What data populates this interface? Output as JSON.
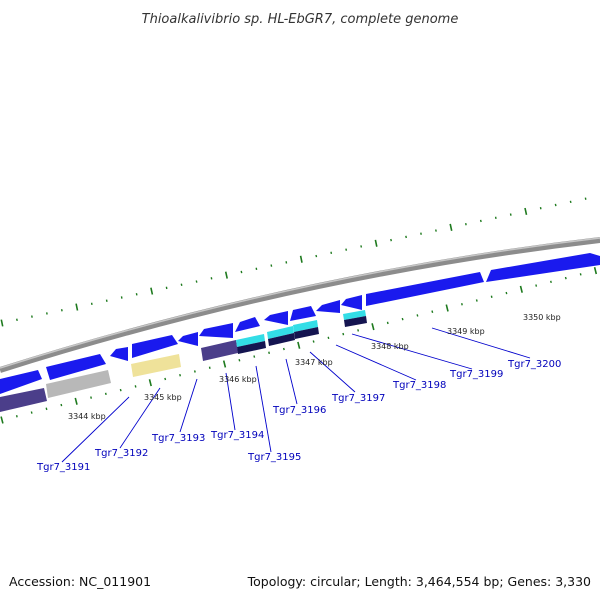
{
  "title": "Thioalkalivibrio sp. HL-EbGR7, complete genome",
  "footer": {
    "accession": "Accession: NC_011901",
    "summary": "Topology: circular; Length: 3,464,554 bp; Genes: 3,330"
  },
  "kbp_labels": [
    "3344 kbp",
    "3345 kbp",
    "3346 kbp",
    "3347 kbp",
    "3348 kbp",
    "3349 kbp",
    "3350 kbp"
  ],
  "gene_labels": [
    "Tgr7_3191",
    "Tgr7_3192",
    "Tgr7_3193",
    "Tgr7_3194",
    "Tgr7_3195",
    "Tgr7_3196",
    "Tgr7_3197",
    "Tgr7_3198",
    "Tgr7_3199",
    "Tgr7_3200"
  ],
  "colors": {
    "backbone": "#8c8c8c",
    "cds": "#1a1aee",
    "cds_highlight": "#6f6ff8",
    "gene_purple": "#4b3e8a",
    "gene_gray": "#b8b8b8",
    "gene_yellow": "#efe29a",
    "gene_cyan": "#33dde6",
    "gene_navy": "#141450",
    "tick": "#1e7a1e",
    "label": "#0000bb"
  }
}
